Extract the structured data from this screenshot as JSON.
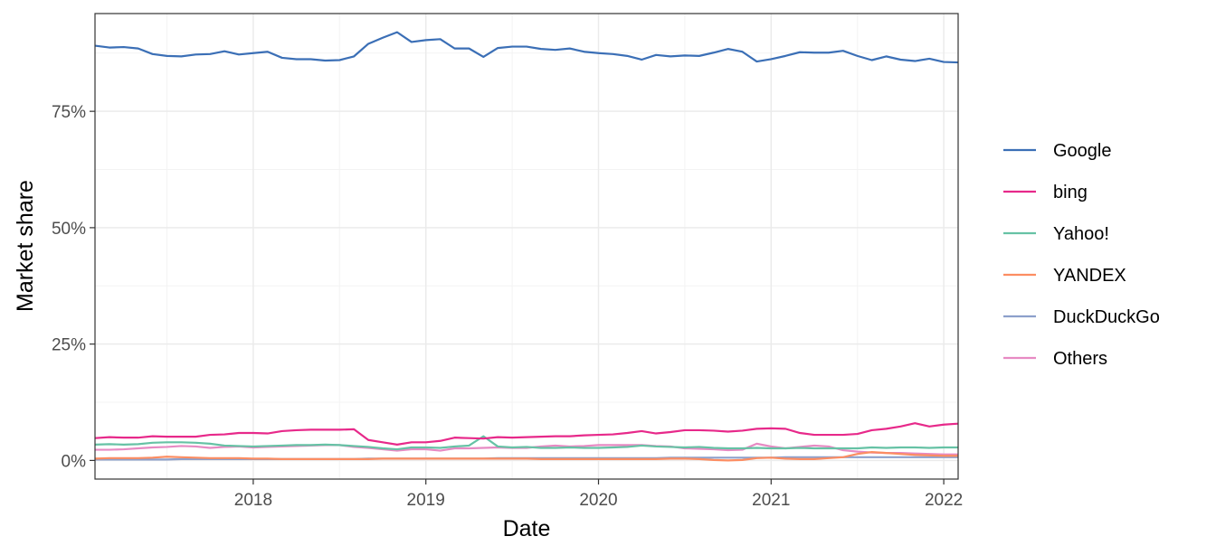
{
  "chart_data": {
    "type": "line",
    "xlabel": "Date",
    "ylabel": "Market share",
    "x_ticks": [
      "2018",
      "2019",
      "2020",
      "2021",
      "2022"
    ],
    "y_ticks": [
      "0%",
      "25%",
      "50%",
      "75%"
    ],
    "xlim": [
      "2017-02",
      "2022-02"
    ],
    "ylim": [
      -4,
      96
    ],
    "grid": true,
    "legend_position": "right",
    "dates": [
      "2017-02",
      "2017-03",
      "2017-04",
      "2017-05",
      "2017-06",
      "2017-07",
      "2017-08",
      "2017-09",
      "2017-10",
      "2017-11",
      "2017-12",
      "2018-01",
      "2018-02",
      "2018-03",
      "2018-04",
      "2018-05",
      "2018-06",
      "2018-07",
      "2018-08",
      "2018-09",
      "2018-10",
      "2018-11",
      "2018-12",
      "2019-01",
      "2019-02",
      "2019-03",
      "2019-04",
      "2019-05",
      "2019-06",
      "2019-07",
      "2019-08",
      "2019-09",
      "2019-10",
      "2019-11",
      "2019-12",
      "2020-01",
      "2020-02",
      "2020-03",
      "2020-04",
      "2020-05",
      "2020-06",
      "2020-07",
      "2020-08",
      "2020-09",
      "2020-10",
      "2020-11",
      "2020-12",
      "2021-01",
      "2021-02",
      "2021-03",
      "2021-04",
      "2021-05",
      "2021-06",
      "2021-07",
      "2021-08",
      "2021-09",
      "2021-10",
      "2021-11",
      "2021-12",
      "2022-01",
      "2022-02"
    ],
    "series": [
      {
        "name": "Google",
        "color": "#3B6FB6",
        "values": [
          89.1,
          88.7,
          88.8,
          88.5,
          87.3,
          86.9,
          86.8,
          87.2,
          87.3,
          87.9,
          87.2,
          87.5,
          87.8,
          86.5,
          86.2,
          86.2,
          85.9,
          86.0,
          86.8,
          89.5,
          90.8,
          92.0,
          89.9,
          90.3,
          90.5,
          88.5,
          88.5,
          86.7,
          88.6,
          88.9,
          88.9,
          88.4,
          88.2,
          88.5,
          87.8,
          87.5,
          87.3,
          86.9,
          86.1,
          87.1,
          86.8,
          87.0,
          86.9,
          87.6,
          88.4,
          87.8,
          85.7,
          86.2,
          86.9,
          87.7,
          87.6,
          87.6,
          88.0,
          86.9,
          86.0,
          86.8,
          86.1,
          85.8,
          86.3,
          85.6,
          85.5
        ]
      },
      {
        "name": "bing",
        "color": "#E7298A",
        "values": [
          4.8,
          5.0,
          4.9,
          4.9,
          5.2,
          5.1,
          5.1,
          5.1,
          5.5,
          5.6,
          5.9,
          5.9,
          5.8,
          6.3,
          6.5,
          6.6,
          6.6,
          6.6,
          6.7,
          4.4,
          3.9,
          3.4,
          3.9,
          3.9,
          4.2,
          4.9,
          4.8,
          4.7,
          5.0,
          4.9,
          5.0,
          5.1,
          5.2,
          5.2,
          5.4,
          5.5,
          5.6,
          5.9,
          6.3,
          5.8,
          6.1,
          6.5,
          6.5,
          6.4,
          6.2,
          6.4,
          6.8,
          6.9,
          6.8,
          5.9,
          5.5,
          5.5,
          5.5,
          5.7,
          6.5,
          6.8,
          7.3,
          8.0,
          7.3,
          7.7,
          7.9
        ]
      },
      {
        "name": "Yahoo!",
        "color": "#66C2A5",
        "values": [
          3.4,
          3.5,
          3.4,
          3.5,
          3.8,
          3.9,
          3.9,
          3.8,
          3.6,
          3.2,
          3.1,
          3.0,
          3.1,
          3.2,
          3.3,
          3.3,
          3.4,
          3.3,
          3.1,
          2.9,
          2.6,
          2.4,
          2.8,
          2.8,
          2.7,
          3.0,
          3.2,
          5.2,
          3.0,
          2.8,
          2.9,
          2.7,
          2.7,
          2.8,
          2.7,
          2.7,
          2.8,
          2.9,
          3.2,
          3.0,
          2.9,
          2.8,
          2.9,
          2.7,
          2.6,
          2.6,
          2.7,
          2.6,
          2.6,
          2.7,
          2.6,
          2.6,
          2.6,
          2.6,
          2.8,
          2.7,
          2.8,
          2.8,
          2.7,
          2.8,
          2.8
        ]
      },
      {
        "name": "YANDEX",
        "color": "#FC8D62",
        "values": [
          0.4,
          0.5,
          0.5,
          0.5,
          0.6,
          0.8,
          0.7,
          0.6,
          0.5,
          0.5,
          0.5,
          0.4,
          0.4,
          0.3,
          0.3,
          0.3,
          0.3,
          0.3,
          0.3,
          0.3,
          0.4,
          0.4,
          0.4,
          0.4,
          0.4,
          0.4,
          0.4,
          0.4,
          0.4,
          0.4,
          0.4,
          0.3,
          0.3,
          0.3,
          0.3,
          0.3,
          0.3,
          0.3,
          0.3,
          0.3,
          0.4,
          0.4,
          0.3,
          0.1,
          0.0,
          0.1,
          0.5,
          0.6,
          0.4,
          0.3,
          0.3,
          0.5,
          0.7,
          1.4,
          1.8,
          1.6,
          1.4,
          1.2,
          1.1,
          1.0,
          1.0
        ]
      },
      {
        "name": "DuckDuckGo",
        "color": "#8DA0CB",
        "values": [
          0.2,
          0.2,
          0.2,
          0.2,
          0.2,
          0.2,
          0.3,
          0.3,
          0.3,
          0.3,
          0.3,
          0.3,
          0.3,
          0.3,
          0.3,
          0.3,
          0.3,
          0.3,
          0.3,
          0.4,
          0.4,
          0.4,
          0.4,
          0.4,
          0.4,
          0.4,
          0.4,
          0.4,
          0.5,
          0.5,
          0.5,
          0.5,
          0.5,
          0.5,
          0.5,
          0.5,
          0.5,
          0.5,
          0.5,
          0.5,
          0.6,
          0.6,
          0.6,
          0.6,
          0.6,
          0.6,
          0.6,
          0.6,
          0.7,
          0.7,
          0.7,
          0.7,
          0.7,
          0.7,
          0.7,
          0.7,
          0.7,
          0.7,
          0.7,
          0.7,
          0.7
        ]
      },
      {
        "name": "Others",
        "color": "#E78AC3",
        "values": [
          2.3,
          2.3,
          2.4,
          2.6,
          2.8,
          2.9,
          3.1,
          3.0,
          2.7,
          2.9,
          3.0,
          2.8,
          2.9,
          3.0,
          3.1,
          3.2,
          3.3,
          3.3,
          2.9,
          2.7,
          2.4,
          2.1,
          2.4,
          2.4,
          2.1,
          2.6,
          2.6,
          2.7,
          2.8,
          2.7,
          2.7,
          3.0,
          3.2,
          3.0,
          3.1,
          3.3,
          3.3,
          3.3,
          3.3,
          3.1,
          3.0,
          2.6,
          2.5,
          2.4,
          2.2,
          2.3,
          3.6,
          3.0,
          2.6,
          2.9,
          3.2,
          3.0,
          2.2,
          1.9,
          1.7,
          1.6,
          1.6,
          1.5,
          1.4,
          1.3,
          1.3
        ]
      }
    ]
  }
}
